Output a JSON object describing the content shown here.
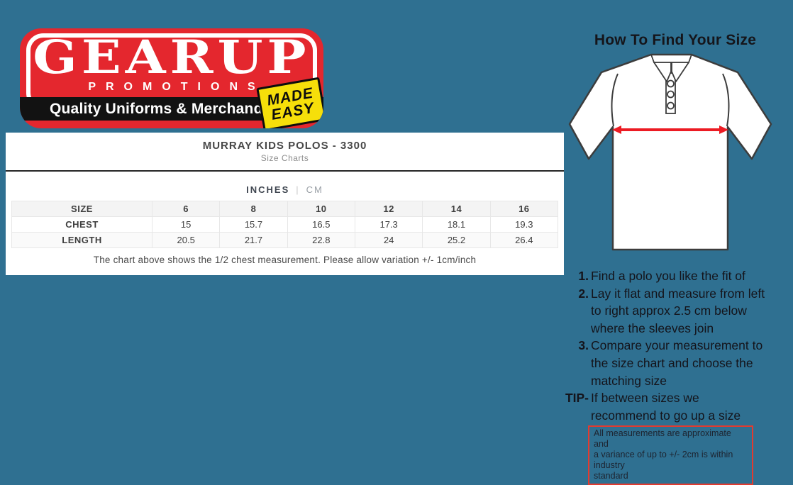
{
  "colors": {
    "background": "#2f7091",
    "logo_red": "#e4272e",
    "logo_black": "#121212",
    "badge_yellow": "#f6df0a",
    "arrow_red": "#ec1b23",
    "disclaimer_border_red": "#e23b30"
  },
  "logo": {
    "brand": "GEARUP",
    "sub_brand": "PROMOTIONS",
    "tagline": "Quality Uniforms & Merchandise",
    "badge_line1": "MADE",
    "badge_line2": "EASY"
  },
  "size_chart": {
    "title": "MURRAY KIDS POLOS - 3300",
    "subtitle": "Size Charts",
    "units": {
      "selected": "INCHES",
      "separator": "|",
      "alternate": "CM"
    },
    "table": {
      "header": [
        "SIZE",
        "6",
        "8",
        "10",
        "12",
        "14",
        "16"
      ],
      "rows": [
        {
          "label": "CHEST",
          "values": [
            "15",
            "15.7",
            "16.5",
            "17.3",
            "18.1",
            "19.3"
          ]
        },
        {
          "label": "LENGTH",
          "values": [
            "20.5",
            "21.7",
            "22.8",
            "24",
            "25.2",
            "26.4"
          ]
        }
      ]
    },
    "note": "The chart above shows the 1/2 chest measurement. Please allow variation +/- 1cm/inch"
  },
  "guide": {
    "heading": "How To Find Your Size",
    "steps": [
      {
        "num": "1.",
        "lines": [
          "Find a polo you like the fit of"
        ]
      },
      {
        "num": "2.",
        "lines": [
          "Lay it flat and measure from left",
          "to right approx 2.5 cm below",
          "where the sleeves join"
        ]
      },
      {
        "num": "3.",
        "lines": [
          "Compare your measurement to",
          "the size chart and choose the",
          "matching size"
        ]
      },
      {
        "num": "TIP-",
        "lines": [
          "If between sizes we",
          "recommend to go up a size"
        ]
      }
    ],
    "disclaimer_lines": [
      "All measurements are approximate and",
      "a variance of up to +/- 2cm is within industry",
      "standard"
    ]
  }
}
